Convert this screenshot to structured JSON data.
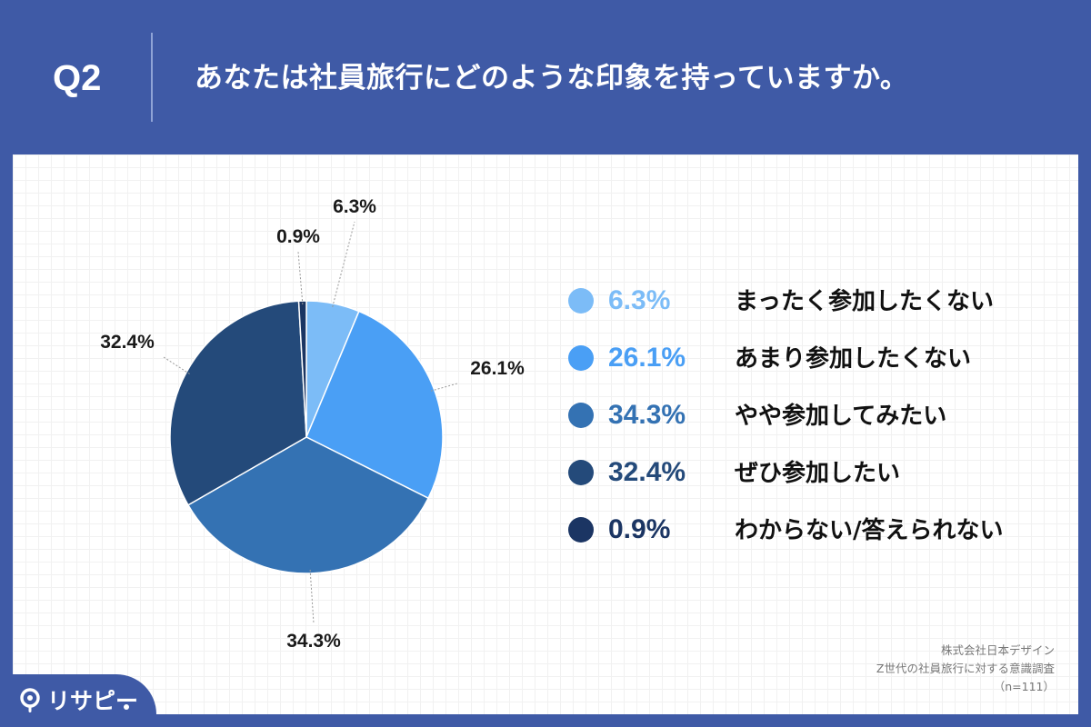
{
  "header": {
    "question_number": "Q2",
    "question_text": "あなたは社員旅行にどのような印象を持っていますか。"
  },
  "chart_data": {
    "type": "pie",
    "title": "",
    "start_angle_deg": 0,
    "direction": "clockwise",
    "categories": [
      "まったく参加したくない",
      "あまり参加したくない",
      "やや参加してみたい",
      "ぜひ参加したい",
      "わからない/答えられない"
    ],
    "values": [
      6.3,
      26.1,
      34.3,
      32.4,
      0.9
    ],
    "value_labels": [
      "6.3%",
      "26.1%",
      "34.3%",
      "32.4%",
      "0.9%"
    ],
    "colors": [
      "#7cbcf7",
      "#4a9ff5",
      "#3472b3",
      "#244a7a",
      "#1b3563"
    ],
    "legend_placement": "right"
  },
  "source": {
    "company": "株式会社日本デザイン",
    "survey": "Z世代の社員旅行に対する意識調査",
    "sample": "（n=111）"
  },
  "logo": {
    "name": "リサピー",
    "icon": "magnifier-pin-icon"
  }
}
